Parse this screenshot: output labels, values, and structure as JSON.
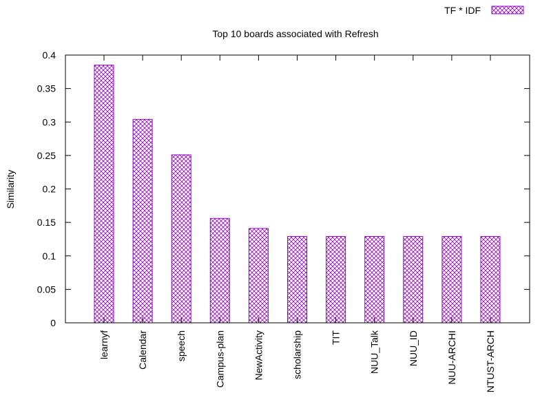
{
  "chart_data": {
    "type": "bar",
    "title": "Top 10 boards associated with Refresh",
    "xlabel": "",
    "ylabel": "Similarity",
    "ylim": [
      0,
      0.4
    ],
    "yticks": [
      "0",
      "0.05",
      "0.1",
      "0.15",
      "0.2",
      "0.25",
      "0.3",
      "0.35",
      "0.4"
    ],
    "categories": [
      "learnyf",
      "Calendar",
      "speech",
      "Campus-plan",
      "NewActivity",
      "scholarship",
      "TIT",
      "NUU_Talk",
      "NUU_ID",
      "NUU-ARCHI",
      "NTUST-ARCH"
    ],
    "series": [
      {
        "name": "TF * IDF",
        "values": [
          0.385,
          0.304,
          0.251,
          0.156,
          0.141,
          0.129,
          0.129,
          0.129,
          0.129,
          0.129,
          0.129
        ],
        "color": "#9400d3"
      }
    ],
    "grid": false,
    "legend_position": "top-right"
  }
}
